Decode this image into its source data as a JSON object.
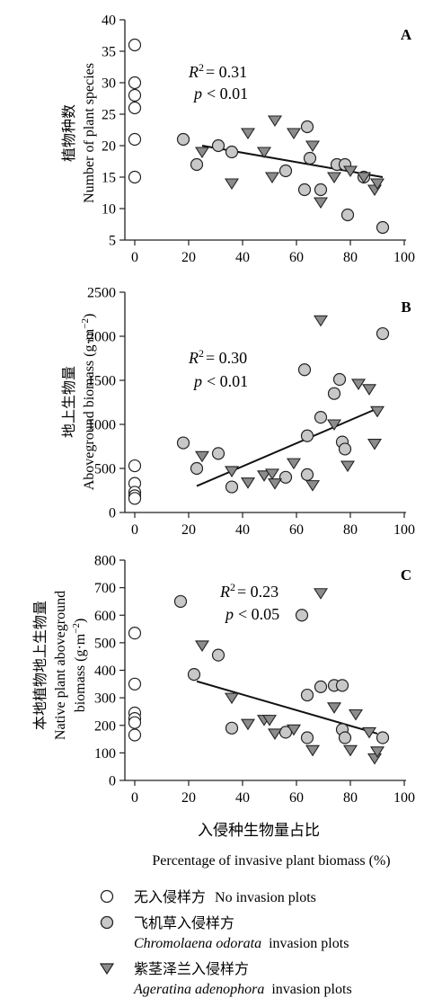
{
  "legend": {
    "none_cn": "无入侵样方",
    "none_en": "No invasion plots",
    "chrom_cn": "飞机草入侵样方",
    "chrom_en_italic": "Chromolaena odorata",
    "chrom_en_rest": "invasion plots",
    "ager_cn": "紫茎泽兰入侵样方",
    "ager_en_italic": "Ageratina adenophora",
    "ager_en_rest": "invasion plots"
  },
  "xlabel_cn": "入侵种生物量占比",
  "xlabel_en": "Percentage of invasive plant biomass (%)",
  "chart_data": [
    {
      "type": "scatter",
      "panel": "A",
      "ylabel_cn": "植物种数",
      "ylabel_en": "Number of plant species",
      "xlim": [
        0,
        100
      ],
      "ylim": [
        5,
        40
      ],
      "xticks": [
        0,
        20,
        40,
        60,
        80,
        100
      ],
      "yticks": [
        5,
        10,
        15,
        20,
        25,
        30,
        35,
        40
      ],
      "r2_label": "R",
      "r2_value": "= 0.31",
      "p_label": "p",
      "p_value": "< 0.01",
      "fit": {
        "x": [
          25,
          92
        ],
        "y": [
          20,
          15
        ]
      },
      "series": [
        {
          "key": "none",
          "x": [
            0,
            0,
            0,
            0,
            0,
            0
          ],
          "y": [
            36,
            30,
            28,
            26,
            21,
            15
          ]
        },
        {
          "key": "chrom",
          "x": [
            18,
            23,
            31,
            36,
            56,
            63,
            64,
            65,
            69,
            75,
            78,
            79,
            85,
            92
          ],
          "y": [
            21,
            17,
            20,
            19,
            16,
            13,
            23,
            18,
            13,
            17,
            17,
            9,
            15,
            7
          ]
        },
        {
          "key": "ager",
          "x": [
            25,
            36,
            42,
            48,
            51,
            52,
            59,
            66,
            69,
            74,
            80,
            85,
            89,
            90
          ],
          "y": [
            19,
            14,
            22,
            19,
            15,
            24,
            22,
            20,
            11,
            15,
            16,
            15,
            13,
            14
          ]
        }
      ]
    },
    {
      "type": "scatter",
      "panel": "B",
      "ylabel_cn": "地上生物量",
      "ylabel_en": "Aboveground biomass (g·m",
      "ylabel_en_sup": "−2",
      "ylabel_en_end": ")",
      "xlim": [
        0,
        100
      ],
      "ylim": [
        0,
        2500
      ],
      "xticks": [
        0,
        20,
        40,
        60,
        80,
        100
      ],
      "yticks": [
        0,
        500,
        1000,
        1500,
        2000,
        2500
      ],
      "r2_label": "R",
      "r2_value": "= 0.30",
      "p_label": "p",
      "p_value": "< 0.01",
      "fit": {
        "x": [
          23,
          90
        ],
        "y": [
          300,
          1180
        ]
      },
      "series": [
        {
          "key": "none",
          "x": [
            0,
            0,
            0,
            0,
            0
          ],
          "y": [
            530,
            330,
            230,
            190,
            160
          ]
        },
        {
          "key": "chrom",
          "x": [
            18,
            23,
            31,
            36,
            56,
            63,
            64,
            64,
            69,
            74,
            76,
            77,
            78,
            92
          ],
          "y": [
            790,
            500,
            670,
            290,
            400,
            1620,
            870,
            430,
            1080,
            1350,
            1510,
            800,
            720,
            2030
          ]
        },
        {
          "key": "ager",
          "x": [
            25,
            36,
            42,
            48,
            51,
            52,
            59,
            66,
            69,
            74,
            79,
            83,
            87,
            89,
            90
          ],
          "y": [
            640,
            470,
            340,
            420,
            440,
            330,
            560,
            310,
            2180,
            1000,
            530,
            1460,
            1400,
            780,
            1150
          ]
        }
      ]
    },
    {
      "type": "scatter",
      "panel": "C",
      "ylabel_cn": "本地植物地上生物量",
      "ylabel_en1": "Native plant aboveground",
      "ylabel_en2": "biomass (g·m",
      "ylabel_en_sup": "−2",
      "ylabel_en_end": ")",
      "xlim": [
        0,
        100
      ],
      "ylim": [
        0,
        800
      ],
      "xticks": [
        0,
        20,
        40,
        60,
        80,
        100
      ],
      "yticks": [
        0,
        100,
        200,
        300,
        400,
        500,
        600,
        700,
        800
      ],
      "r2_label": "R",
      "r2_value": "= 0.23",
      "p_label": "p",
      "p_value": "< 0.05",
      "fit": {
        "x": [
          23,
          90
        ],
        "y": [
          360,
          170
        ]
      },
      "series": [
        {
          "key": "none",
          "x": [
            0,
            0,
            0,
            0,
            0,
            0
          ],
          "y": [
            535,
            350,
            245,
            225,
            210,
            165
          ]
        },
        {
          "key": "chrom",
          "x": [
            17,
            22,
            31,
            36,
            56,
            62,
            64,
            64,
            69,
            74,
            77,
            77,
            78,
            92
          ],
          "y": [
            650,
            385,
            455,
            190,
            175,
            600,
            310,
            155,
            340,
            345,
            345,
            185,
            155,
            155
          ]
        },
        {
          "key": "ager",
          "x": [
            25,
            36,
            42,
            48,
            50,
            52,
            59,
            66,
            69,
            74,
            80,
            82,
            87,
            89,
            90
          ],
          "y": [
            490,
            300,
            205,
            220,
            220,
            170,
            185,
            110,
            680,
            265,
            110,
            240,
            175,
            80,
            105
          ]
        }
      ]
    }
  ]
}
